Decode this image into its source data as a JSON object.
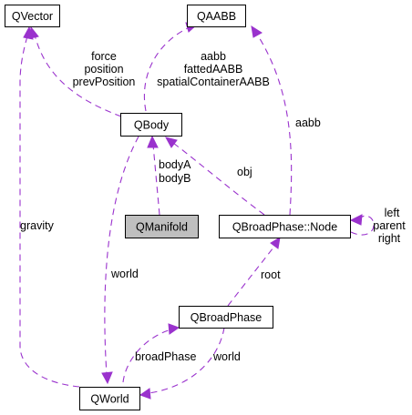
{
  "nodes": {
    "qvector": "QVector",
    "qaabb": "QAABB",
    "qbody": "QBody",
    "qmanifold": "QManifold",
    "qbroadphase_node": "QBroadPhase::Node",
    "qbroadphase": "QBroadPhase",
    "qworld": "QWorld"
  },
  "edges": {
    "body_vector": [
      "force",
      "position",
      "prevPosition"
    ],
    "body_aabb": [
      "aabb",
      "fattedAABB",
      "spatialContainerAABB"
    ],
    "manifold_body": [
      "bodyA",
      "bodyB"
    ],
    "node_aabb": "aabb",
    "node_body": "obj",
    "node_self": [
      "left",
      "parent",
      "right"
    ],
    "world_vector": "gravity",
    "body_world": "world",
    "world_broadphase": "broadPhase",
    "broadphase_node": "root",
    "broadphase_world": "world"
  },
  "colors": {
    "edge": "#9a32cd",
    "focus_fill": "#bfbfbf"
  }
}
